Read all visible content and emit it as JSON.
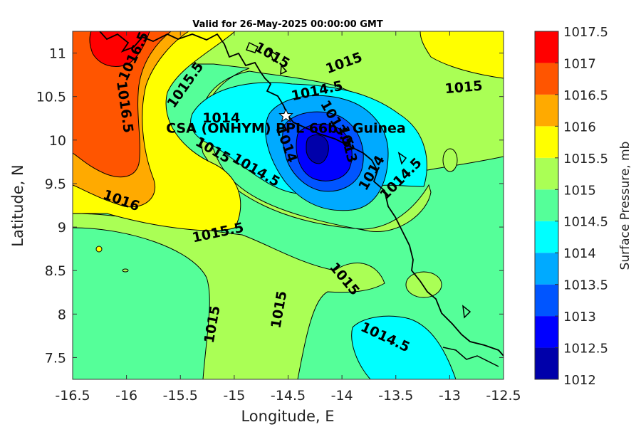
{
  "title": "Valid for 26-May-2025 00:00:00 GMT",
  "map": {
    "xlabel": "Longitude, E",
    "ylabel": "Latitude, N",
    "xlim": [
      -16.5,
      -12.5
    ],
    "ylim": [
      7.25,
      11.25
    ],
    "xticks": [
      "-16.5",
      "-16",
      "-15.5",
      "-15",
      "-14.5",
      "-14",
      "-13.5",
      "-13",
      "-12.5"
    ],
    "yticks": [
      "7.5",
      "8",
      "8.5",
      "9",
      "9.5",
      "10",
      "10.5",
      "11"
    ],
    "site": {
      "label": "CSA (ONHYM) PPL 66b - Guinea",
      "lon": -14.52,
      "lat": 10.28
    },
    "contour_labels": [
      {
        "text": "1016.5",
        "lon": -15.93,
        "lat": 10.96,
        "rotate": -65
      },
      {
        "text": "1016.5",
        "lon": -16.02,
        "lat": 10.38,
        "rotate": 82
      },
      {
        "text": "1015.5",
        "lon": -15.45,
        "lat": 10.63,
        "rotate": -55
      },
      {
        "text": "1015",
        "lon": -14.65,
        "lat": 10.97,
        "rotate": 30
      },
      {
        "text": "1015",
        "lon": -13.98,
        "lat": 10.88,
        "rotate": -20
      },
      {
        "text": "1015",
        "lon": -12.87,
        "lat": 10.6,
        "rotate": -5
      },
      {
        "text": "1014.5",
        "lon": -14.23,
        "lat": 10.56,
        "rotate": -12
      },
      {
        "text": "1014",
        "lon": -15.12,
        "lat": 10.25,
        "rotate": 0
      },
      {
        "text": "1014",
        "lon": -14.52,
        "lat": 9.95,
        "rotate": 70
      },
      {
        "text": "1013.5",
        "lon": -14.05,
        "lat": 10.18,
        "rotate": 60
      },
      {
        "text": "1013",
        "lon": -13.95,
        "lat": 9.95,
        "rotate": 75
      },
      {
        "text": "1014",
        "lon": -13.72,
        "lat": 9.62,
        "rotate": -60
      },
      {
        "text": "1015",
        "lon": -15.2,
        "lat": 9.88,
        "rotate": 30
      },
      {
        "text": "1014.5",
        "lon": -14.8,
        "lat": 9.65,
        "rotate": 30
      },
      {
        "text": "1014.5",
        "lon": -13.45,
        "lat": 9.55,
        "rotate": -45
      },
      {
        "text": "1016",
        "lon": -16.05,
        "lat": 9.3,
        "rotate": 20
      },
      {
        "text": "1015.5",
        "lon": -15.15,
        "lat": 8.93,
        "rotate": -12
      },
      {
        "text": "1015",
        "lon": -13.98,
        "lat": 8.4,
        "rotate": 50
      },
      {
        "text": "1015",
        "lon": -15.2,
        "lat": 7.88,
        "rotate": -80
      },
      {
        "text": "1015",
        "lon": -14.58,
        "lat": 8.05,
        "rotate": -80
      },
      {
        "text": "1014.5",
        "lon": -13.6,
        "lat": 7.73,
        "rotate": 25
      }
    ]
  },
  "colorbar": {
    "label": "Surface Pressure, mb",
    "levels": [
      "1012",
      "1012.5",
      "1013",
      "1013.5",
      "1014",
      "1014.5",
      "1015",
      "1015.5",
      "1016",
      "1016.5",
      "1017",
      "1017.5"
    ],
    "colors": [
      "#0000aa",
      "#0000ff",
      "#0055ff",
      "#00aaff",
      "#00ffff",
      "#55ff99",
      "#aaff55",
      "#ffff00",
      "#ffaa00",
      "#ff5500",
      "#ff0000"
    ]
  }
}
